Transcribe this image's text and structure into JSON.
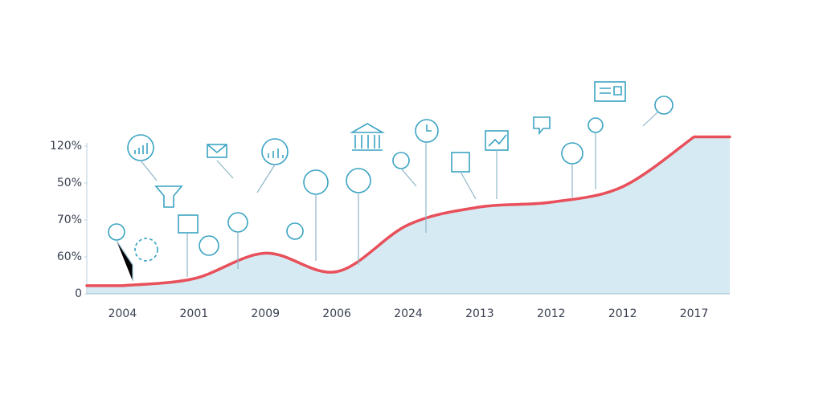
{
  "chart_data": {
    "type": "area",
    "categories": [
      "2004",
      "2001",
      "2009",
      "2006",
      "2024",
      "2013",
      "2012",
      "2012",
      "2017"
    ],
    "values": [
      0.22,
      0.41,
      1.1,
      0.6,
      1.87,
      2.35,
      2.48,
      2.9,
      4.25
    ],
    "color": "#e8505b",
    "fill": "#d6eaf3",
    "ylim": [
      0,
      4.5
    ],
    "yticks": [
      0,
      {
        "value": 1,
        "label": "60%"
      },
      {
        "value": 2,
        "label": "70%"
      },
      {
        "value": 3,
        "label": "50%"
      },
      {
        "value": 4,
        "label": "120%"
      }
    ]
  }
}
